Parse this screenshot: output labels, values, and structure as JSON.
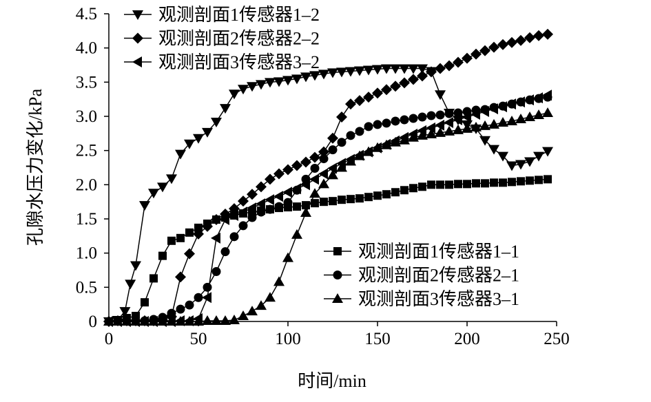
{
  "chart_data": {
    "type": "line",
    "xlabel": "时间/min",
    "ylabel": "孔隙水压力变化/kPa",
    "xlim": [
      0,
      250
    ],
    "ylim": [
      0,
      4.5
    ],
    "x_ticks": [
      "0",
      "50",
      "100",
      "150",
      "200",
      "250"
    ],
    "y_ticks": [
      "0",
      "0.5",
      "1.0",
      "1.5",
      "2.0",
      "2.5",
      "3.0",
      "3.5",
      "4.0",
      "4.5"
    ],
    "grid": false,
    "legend_groups": [
      {
        "placement": "top-left",
        "entries": [
          1,
          3,
          5
        ]
      },
      {
        "placement": "bottom-right",
        "entries": [
          0,
          2,
          4
        ]
      }
    ],
    "series": [
      {
        "name": "观测剖面1传感器1–1",
        "marker": "square",
        "x": [
          0,
          5,
          10,
          15,
          20,
          25,
          30,
          35,
          40,
          45,
          50,
          55,
          60,
          65,
          70,
          75,
          80,
          85,
          90,
          95,
          100,
          105,
          110,
          115,
          120,
          125,
          130,
          135,
          140,
          145,
          150,
          155,
          160,
          165,
          170,
          175,
          180,
          185,
          190,
          195,
          200,
          205,
          210,
          215,
          220,
          225,
          230,
          235,
          240,
          245
        ],
        "y": [
          0,
          0.02,
          0.05,
          0.08,
          0.28,
          0.63,
          0.96,
          1.18,
          1.22,
          1.3,
          1.37,
          1.43,
          1.49,
          1.52,
          1.55,
          1.58,
          1.6,
          1.62,
          1.64,
          1.66,
          1.67,
          1.68,
          1.7,
          1.73,
          1.75,
          1.76,
          1.78,
          1.79,
          1.8,
          1.82,
          1.84,
          1.86,
          1.89,
          1.92,
          1.95,
          1.97,
          2.0,
          2.0,
          2.0,
          2.01,
          2.01,
          2.02,
          2.02,
          2.03,
          2.03,
          2.04,
          2.05,
          2.06,
          2.07,
          2.08
        ]
      },
      {
        "name": "观测剖面1传感器1–2",
        "marker": "triangle-down",
        "x": [
          0,
          5,
          9,
          12,
          15,
          20,
          25,
          30,
          35,
          40,
          45,
          50,
          55,
          60,
          65,
          70,
          75,
          80,
          85,
          90,
          95,
          100,
          105,
          110,
          115,
          120,
          125,
          130,
          135,
          140,
          145,
          150,
          155,
          160,
          165,
          170,
          175,
          180,
          185,
          190,
          195,
          200,
          205,
          210,
          215,
          220,
          225,
          230,
          235,
          240,
          245
        ],
        "y": [
          0,
          0.02,
          0.15,
          0.55,
          0.82,
          1.7,
          1.88,
          1.97,
          2.09,
          2.45,
          2.6,
          2.68,
          2.77,
          2.92,
          3.12,
          3.33,
          3.4,
          3.44,
          3.47,
          3.5,
          3.51,
          3.53,
          3.55,
          3.58,
          3.6,
          3.62,
          3.64,
          3.65,
          3.66,
          3.67,
          3.68,
          3.69,
          3.7,
          3.7,
          3.7,
          3.7,
          3.7,
          3.66,
          3.32,
          3.05,
          2.95,
          2.88,
          2.82,
          2.65,
          2.52,
          2.42,
          2.28,
          2.3,
          2.34,
          2.42,
          2.49
        ]
      },
      {
        "name": "观测剖面2传感器2–1",
        "marker": "circle",
        "x": [
          0,
          5,
          10,
          15,
          20,
          25,
          30,
          35,
          40,
          45,
          50,
          55,
          60,
          65,
          70,
          75,
          80,
          85,
          90,
          95,
          100,
          105,
          110,
          115,
          120,
          125,
          130,
          135,
          140,
          145,
          150,
          155,
          160,
          165,
          170,
          175,
          180,
          185,
          190,
          195,
          200,
          205,
          210,
          215,
          220,
          225,
          230,
          235,
          240,
          245
        ],
        "y": [
          0,
          0.01,
          0.01,
          0.01,
          0.01,
          0.03,
          0.06,
          0.12,
          0.18,
          0.24,
          0.35,
          0.5,
          0.73,
          1.02,
          1.24,
          1.4,
          1.52,
          1.6,
          1.64,
          1.68,
          1.74,
          1.92,
          2.08,
          2.24,
          2.38,
          2.51,
          2.62,
          2.72,
          2.78,
          2.85,
          2.88,
          2.9,
          2.93,
          2.95,
          2.97,
          2.99,
          3.01,
          3.02,
          3.04,
          3.05,
          3.07,
          3.09,
          3.1,
          3.13,
          3.15,
          3.18,
          3.21,
          3.24,
          3.26,
          3.28
        ]
      },
      {
        "name": "观测剖面2传感器2–2",
        "marker": "diamond",
        "x": [
          0,
          5,
          10,
          15,
          20,
          25,
          30,
          35,
          40,
          45,
          50,
          55,
          60,
          65,
          70,
          75,
          80,
          85,
          90,
          95,
          100,
          105,
          110,
          115,
          120,
          125,
          130,
          135,
          140,
          145,
          150,
          155,
          160,
          165,
          170,
          175,
          180,
          185,
          190,
          195,
          200,
          205,
          210,
          215,
          220,
          225,
          230,
          235,
          240,
          245
        ],
        "y": [
          0,
          0.01,
          0.01,
          0.01,
          0.01,
          0.01,
          0.02,
          0.07,
          0.65,
          0.99,
          1.28,
          1.39,
          1.49,
          1.57,
          1.65,
          1.76,
          1.86,
          1.97,
          2.08,
          2.16,
          2.22,
          2.28,
          2.33,
          2.4,
          2.48,
          2.68,
          2.99,
          3.18,
          3.23,
          3.28,
          3.34,
          3.39,
          3.44,
          3.49,
          3.54,
          3.59,
          3.65,
          3.7,
          3.74,
          3.79,
          3.85,
          3.91,
          3.96,
          4.01,
          4.05,
          4.08,
          4.11,
          4.15,
          4.18,
          4.2
        ]
      },
      {
        "name": "观测剖面3传感器3–1",
        "marker": "triangle-up",
        "x": [
          0,
          5,
          10,
          15,
          20,
          25,
          30,
          35,
          40,
          45,
          50,
          55,
          60,
          65,
          70,
          75,
          80,
          85,
          90,
          95,
          100,
          105,
          110,
          115,
          120,
          125,
          130,
          135,
          140,
          145,
          150,
          155,
          160,
          165,
          170,
          175,
          180,
          185,
          190,
          195,
          200,
          205,
          210,
          215,
          220,
          225,
          230,
          235,
          240,
          245
        ],
        "y": [
          0,
          0,
          0,
          0,
          0,
          0,
          0,
          0,
          0,
          0,
          0,
          0.01,
          0.01,
          0.01,
          0.02,
          0.08,
          0.15,
          0.23,
          0.35,
          0.58,
          0.93,
          1.27,
          1.59,
          1.87,
          2.01,
          2.14,
          2.25,
          2.34,
          2.42,
          2.48,
          2.54,
          2.58,
          2.62,
          2.65,
          2.69,
          2.72,
          2.74,
          2.76,
          2.78,
          2.8,
          2.82,
          2.84,
          2.86,
          2.88,
          2.91,
          2.93,
          2.96,
          2.99,
          3.02,
          3.05
        ]
      },
      {
        "name": "观测剖面3传感器3–2",
        "marker": "triangle-left",
        "x": [
          0,
          5,
          10,
          15,
          20,
          25,
          30,
          35,
          40,
          45,
          50,
          55,
          60,
          65,
          70,
          75,
          80,
          85,
          90,
          95,
          100,
          105,
          110,
          115,
          120,
          125,
          130,
          135,
          140,
          145,
          150,
          155,
          160,
          165,
          170,
          175,
          180,
          185,
          190,
          195,
          200,
          205,
          210,
          215,
          220,
          225,
          230,
          235,
          240,
          245
        ],
        "y": [
          0,
          0,
          0,
          0,
          0,
          0,
          0,
          0,
          0.01,
          0.01,
          0.04,
          0.35,
          1.22,
          1.49,
          1.55,
          1.6,
          1.66,
          1.72,
          1.78,
          1.83,
          1.89,
          1.94,
          2.0,
          2.08,
          2.16,
          2.24,
          2.31,
          2.37,
          2.43,
          2.48,
          2.54,
          2.59,
          2.64,
          2.69,
          2.74,
          2.79,
          2.83,
          2.87,
          2.91,
          2.95,
          2.99,
          3.03,
          3.07,
          3.11,
          3.14,
          3.18,
          3.21,
          3.24,
          3.27,
          3.31
        ]
      }
    ]
  }
}
